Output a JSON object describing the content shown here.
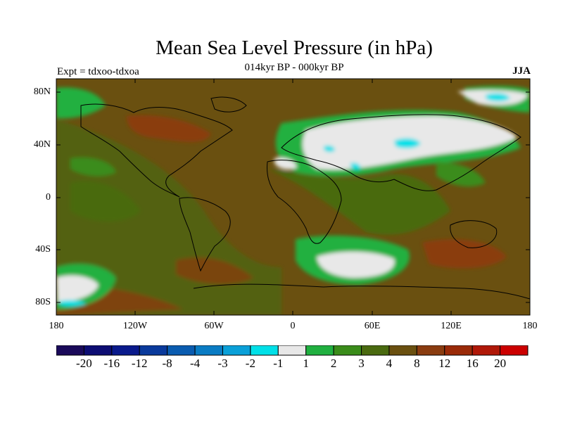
{
  "title": "Mean Sea Level Pressure (in hPa)",
  "subtitle": "014kyr BP - 000kyr BP",
  "expt_label": "Expt = tdxoo-tdxoa",
  "season": "JJA",
  "lat_labels": [
    "80N",
    "40N",
    "0",
    "40S",
    "80S"
  ],
  "lon_labels": [
    "180",
    "120W",
    "60W",
    "0",
    "60E",
    "120E",
    "180"
  ],
  "colorbar": {
    "labels": [
      "-20",
      "-16",
      "-12",
      "-8",
      "-4",
      "-3",
      "-2",
      "-1",
      "1",
      "2",
      "3",
      "4",
      "8",
      "12",
      "16",
      "20"
    ],
    "colors": [
      "#1a0a5a",
      "#0d0d73",
      "#0a1a8c",
      "#0a3a9c",
      "#0a5cb0",
      "#0a7cc4",
      "#0aa0d8",
      "#00e0e8",
      "#e8e8e8",
      "#20b040",
      "#3a8c1a",
      "#4a6a10",
      "#6a5010",
      "#8a3c10",
      "#9a2a08",
      "#b01808",
      "#cc0000"
    ]
  },
  "map_colors": {
    "ocean_base": "#4a6a10",
    "mid": "#6a5010",
    "warm": "#8a3c10",
    "green": "#20b040",
    "darkgreen": "#3a8c1a",
    "low": "#e8e8e8",
    "cyan": "#00e0e8"
  }
}
